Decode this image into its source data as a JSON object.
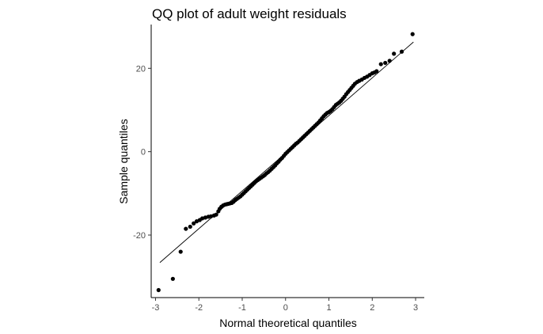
{
  "chart_data": {
    "type": "scatter",
    "title": "QQ plot of adult weight residuals",
    "xlabel": "Normal theoretical quantiles",
    "ylabel": "Sample quantiles",
    "xlim": [
      -3.1,
      3.2
    ],
    "ylim": [
      -35,
      30.5
    ],
    "x_ticks": [
      {
        "value": -3,
        "label": "-3"
      },
      {
        "value": -2,
        "label": "-2"
      },
      {
        "value": -1,
        "label": "-1"
      },
      {
        "value": 0,
        "label": "0"
      },
      {
        "value": 1,
        "label": "1"
      },
      {
        "value": 2,
        "label": "2"
      },
      {
        "value": 3,
        "label": "3"
      }
    ],
    "y_ticks": [
      {
        "value": -20,
        "label": "-20"
      },
      {
        "value": 0,
        "label": "0"
      },
      {
        "value": 20,
        "label": "20"
      }
    ],
    "grid": false,
    "reference_line": {
      "x": [
        -2.9,
        2.95
      ],
      "y": [
        -26.6,
        26.3
      ]
    },
    "series": [
      {
        "name": "Sample quantiles",
        "color": "#000000",
        "points": [
          [
            -2.93,
            -33.2
          ],
          [
            -2.6,
            -30.5
          ],
          [
            -2.42,
            -24.0
          ],
          [
            -2.3,
            -18.5
          ],
          [
            -2.2,
            -18.0
          ],
          [
            -2.12,
            -17.2
          ],
          [
            -2.05,
            -16.7
          ],
          [
            -1.98,
            -16.4
          ],
          [
            -1.92,
            -16.0
          ],
          [
            -1.85,
            -15.8
          ],
          [
            -1.78,
            -15.6
          ],
          [
            -1.72,
            -15.5
          ],
          [
            -1.65,
            -15.3
          ],
          [
            -1.6,
            -15.1
          ],
          [
            -1.55,
            -14.3
          ],
          [
            -1.52,
            -13.7
          ],
          [
            -1.48,
            -13.2
          ],
          [
            -1.44,
            -12.9
          ],
          [
            -1.4,
            -12.7
          ],
          [
            -1.36,
            -12.6
          ],
          [
            -1.32,
            -12.5
          ],
          [
            -1.28,
            -12.4
          ],
          [
            -1.24,
            -12.3
          ],
          [
            -1.2,
            -12.0
          ],
          [
            -1.16,
            -11.6
          ],
          [
            -1.12,
            -11.3
          ],
          [
            -1.08,
            -11.0
          ],
          [
            -1.04,
            -10.7
          ],
          [
            -1.0,
            -10.3
          ],
          [
            -0.96,
            -9.9
          ],
          [
            -0.92,
            -9.5
          ],
          [
            -0.88,
            -9.1
          ],
          [
            -0.84,
            -8.7
          ],
          [
            -0.8,
            -8.3
          ],
          [
            -0.76,
            -7.9
          ],
          [
            -0.72,
            -7.5
          ],
          [
            -0.68,
            -7.1
          ],
          [
            -0.64,
            -6.8
          ],
          [
            -0.6,
            -6.5
          ],
          [
            -0.56,
            -6.2
          ],
          [
            -0.52,
            -5.9
          ],
          [
            -0.48,
            -5.6
          ],
          [
            -0.44,
            -5.2
          ],
          [
            -0.4,
            -4.9
          ],
          [
            -0.36,
            -4.5
          ],
          [
            -0.32,
            -4.1
          ],
          [
            -0.28,
            -3.7
          ],
          [
            -0.24,
            -3.3
          ],
          [
            -0.2,
            -2.8
          ],
          [
            -0.16,
            -2.4
          ],
          [
            -0.12,
            -1.9
          ],
          [
            -0.08,
            -1.5
          ],
          [
            -0.04,
            -1.0
          ],
          [
            0.0,
            -0.5
          ],
          [
            0.04,
            -0.1
          ],
          [
            0.08,
            0.3
          ],
          [
            0.12,
            0.7
          ],
          [
            0.16,
            1.1
          ],
          [
            0.2,
            1.5
          ],
          [
            0.24,
            1.9
          ],
          [
            0.28,
            2.2
          ],
          [
            0.32,
            2.6
          ],
          [
            0.36,
            3.0
          ],
          [
            0.4,
            3.4
          ],
          [
            0.44,
            3.8
          ],
          [
            0.48,
            4.2
          ],
          [
            0.52,
            4.6
          ],
          [
            0.56,
            5.0
          ],
          [
            0.6,
            5.4
          ],
          [
            0.64,
            5.8
          ],
          [
            0.68,
            6.2
          ],
          [
            0.72,
            6.6
          ],
          [
            0.76,
            7.0
          ],
          [
            0.8,
            7.5
          ],
          [
            0.84,
            8.0
          ],
          [
            0.88,
            8.5
          ],
          [
            0.92,
            8.9
          ],
          [
            0.96,
            9.3
          ],
          [
            1.0,
            9.5
          ],
          [
            1.04,
            9.8
          ],
          [
            1.08,
            10.2
          ],
          [
            1.12,
            10.7
          ],
          [
            1.16,
            11.2
          ],
          [
            1.2,
            11.5
          ],
          [
            1.24,
            11.8
          ],
          [
            1.28,
            12.2
          ],
          [
            1.32,
            12.7
          ],
          [
            1.36,
            13.2
          ],
          [
            1.4,
            13.8
          ],
          [
            1.44,
            14.3
          ],
          [
            1.48,
            14.8
          ],
          [
            1.52,
            15.3
          ],
          [
            1.56,
            15.8
          ],
          [
            1.6,
            16.3
          ],
          [
            1.65,
            16.7
          ],
          [
            1.7,
            17.0
          ],
          [
            1.76,
            17.3
          ],
          [
            1.82,
            17.7
          ],
          [
            1.88,
            18.0
          ],
          [
            1.94,
            18.4
          ],
          [
            2.0,
            18.8
          ],
          [
            2.05,
            19.0
          ],
          [
            2.1,
            19.3
          ],
          [
            2.2,
            21.0
          ],
          [
            2.3,
            21.3
          ],
          [
            2.4,
            21.8
          ],
          [
            2.5,
            23.5
          ],
          [
            2.68,
            24.0
          ],
          [
            2.93,
            28.2
          ]
        ]
      }
    ]
  }
}
